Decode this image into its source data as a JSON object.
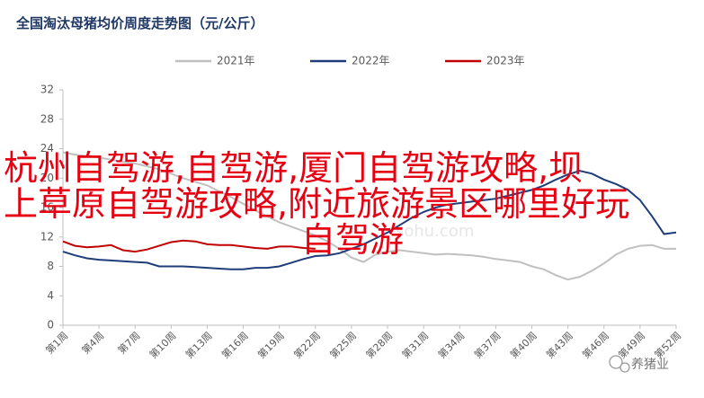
{
  "chart_data": {
    "type": "line",
    "title": "全国淘汰母猪均价周度走势图（元/公斤）",
    "categories": [
      "第1周",
      null,
      null,
      "第4周",
      null,
      null,
      "第7周",
      null,
      null,
      "第10周",
      null,
      null,
      "第13周",
      null,
      null,
      "第16周",
      null,
      null,
      "第19周",
      null,
      null,
      "第22周",
      null,
      null,
      "第25周",
      null,
      null,
      "第28周",
      null,
      null,
      "第31周",
      null,
      null,
      "第34周",
      null,
      null,
      "第37周",
      null,
      null,
      "第40周",
      null,
      null,
      "第43周",
      null,
      null,
      "第46周",
      null,
      null,
      "第49周",
      null,
      null,
      "第52周"
    ],
    "series": [
      {
        "name": "2021年",
        "color": "#c0c0c0",
        "values": [
          23.5,
          23.2,
          23.0,
          22.8,
          22.5,
          22.2,
          22.0,
          21.6,
          21.2,
          20.6,
          20.0,
          19.5,
          19.0,
          18.2,
          17.4,
          16.5,
          15.6,
          14.8,
          14.0,
          13.4,
          12.8,
          12.2,
          11.4,
          10.4,
          9.2,
          8.6,
          9.6,
          10.0,
          10.2,
          10.0,
          9.8,
          9.6,
          9.7,
          9.6,
          9.5,
          9.3,
          9.0,
          8.8,
          8.6,
          8.0,
          7.6,
          6.8,
          6.2,
          6.6,
          7.4,
          8.4,
          9.6,
          10.4,
          10.8,
          10.9,
          10.4,
          10.4
        ]
      },
      {
        "name": "2022年",
        "color": "#1f3d7a",
        "values": [
          10,
          9.5,
          9.1,
          8.9,
          8.8,
          8.7,
          8.6,
          8.5,
          8.0,
          8.0,
          8.0,
          7.9,
          7.8,
          7.7,
          7.6,
          7.6,
          7.8,
          7.8,
          8.0,
          8.5,
          9.0,
          9.4,
          9.5,
          9.8,
          10.4,
          11.0,
          11.8,
          12.6,
          13.6,
          14.6,
          15.4,
          16.0,
          16.4,
          16.6,
          16.8,
          17.0,
          17.2,
          17.6,
          18.0,
          18.4,
          19.0,
          19.8,
          20.5,
          21.0,
          20.6,
          19.8,
          19.2,
          18.4,
          17.0,
          14.8,
          12.4,
          12.6
        ]
      },
      {
        "name": "2023年",
        "color": "#c00000",
        "values": [
          11.4,
          10.8,
          10.6,
          10.7,
          10.9,
          10.2,
          10.0,
          10.3,
          10.8,
          11.3,
          11.5,
          11.4,
          11.0,
          10.9,
          10.9,
          10.7,
          10.5,
          10.4,
          10.7,
          10.7,
          10.5,
          10.4,
          null,
          null,
          null,
          null,
          null,
          null,
          null,
          null,
          null,
          null,
          null,
          null,
          null,
          null,
          null,
          null,
          null,
          null,
          null,
          null,
          null,
          null,
          null,
          null,
          null,
          null,
          null,
          null,
          null,
          null
        ]
      }
    ],
    "ylim": [
      0,
      32
    ],
    "yticks": [
      0,
      4,
      8,
      12,
      16,
      20,
      24,
      28,
      32
    ],
    "grid": false,
    "legend": "top",
    "watermark": "sohu.com",
    "source": "养猪业"
  },
  "overlay": {
    "lines": [
      "杭州自驾游,自驾游,厦门自驾游攻略,坝",
      "上草原自驾游攻略,附近旅游景区哪里好玩",
      "自驾游"
    ]
  }
}
